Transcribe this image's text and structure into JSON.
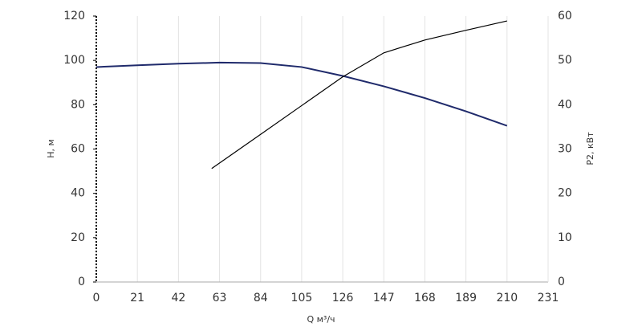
{
  "chart_data": {
    "type": "line",
    "x_label": "Q м³/ч",
    "y_label": "H, м",
    "y2_label": "P2, кВт",
    "xlim": [
      0,
      231
    ],
    "xticks": [
      0,
      21,
      42,
      63,
      84,
      105,
      126,
      147,
      168,
      189,
      210,
      231
    ],
    "ylim": [
      0,
      120
    ],
    "yticks": [
      0,
      20,
      40,
      60,
      80,
      100,
      120
    ],
    "y2lim": [
      0,
      60
    ],
    "y2ticks": [
      0,
      10,
      20,
      30,
      40,
      50,
      60
    ],
    "grid": true,
    "series": [
      {
        "name": "H, м",
        "color": "#1f2a6b",
        "axis": "y",
        "x": [
          0,
          21,
          42,
          63,
          84,
          105,
          126,
          147,
          168,
          189,
          210
        ],
        "values": [
          97,
          97.8,
          98.5,
          99,
          98.8,
          97,
          93,
          88.3,
          83,
          77,
          70.5
        ]
      },
      {
        "name": "P2, кВт",
        "color": "#000000",
        "axis": "y2",
        "x": [
          59,
          84,
          105,
          126,
          147,
          168,
          189,
          210
        ],
        "values": [
          25.6,
          33.3,
          39.8,
          46.3,
          51.7,
          54.6,
          56.8,
          58.9
        ]
      }
    ]
  }
}
